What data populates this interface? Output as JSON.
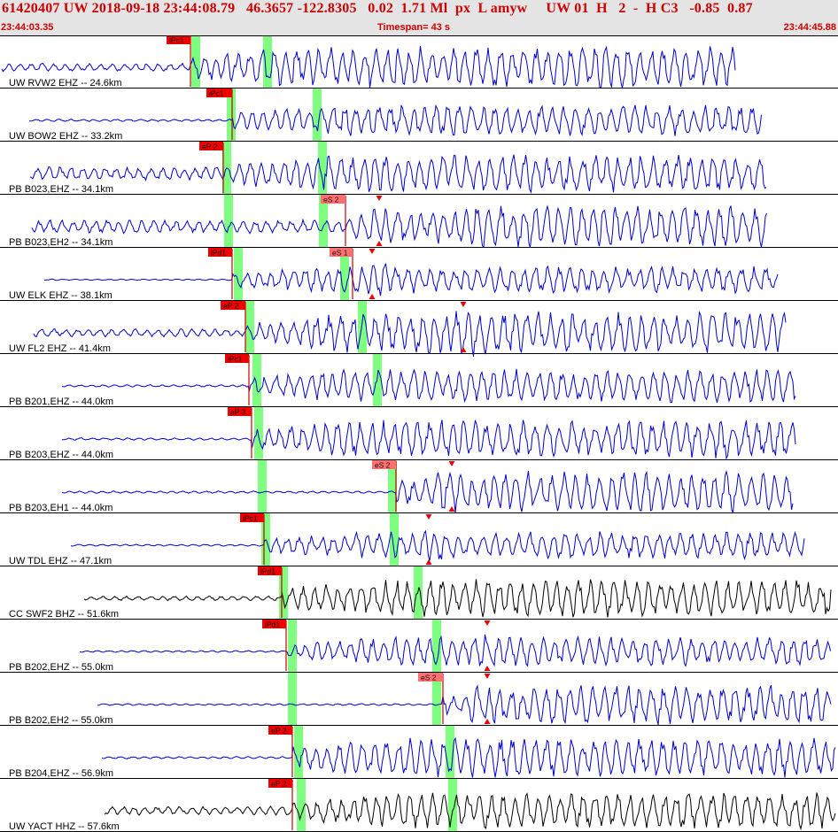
{
  "header": {
    "title_line": "61420407 UW 2018-09-18 23:44:08.79   46.3657 -122.8305   0.02  1.71 Ml  px  L amyw     UW 01  H   2  -  H C3   -0.85  0.87",
    "start_time": "23:44:03.35",
    "timespan": "Timespan=  43 s",
    "end_time": "23:44:45.88"
  },
  "colors": {
    "accent": "#cc0000",
    "trace_blue": "#0000cc",
    "trace_black": "#000000",
    "pick_green": "#7fff7f",
    "pick_red": "#ee0000",
    "header_bg": "#e4e4e4"
  },
  "channels": [
    {
      "label": "UW RVW2 EHZ -- 24.6km",
      "trace_color": "blue",
      "picks": [
        {
          "label": "iPc1",
          "type": "P"
        }
      ],
      "green_markers": 2
    },
    {
      "label": "UW BOW2 EHZ -- 33.2km",
      "trace_color": "blue",
      "picks": [
        {
          "label": "iPc1",
          "type": "P"
        }
      ],
      "green_markers": 2
    },
    {
      "label": "PB B023,EHZ -- 34.1km",
      "trace_color": "blue",
      "picks": [
        {
          "label": "eP 2",
          "type": "P"
        }
      ],
      "green_markers": 2
    },
    {
      "label": "PB B023,EH2 -- 34.1km",
      "trace_color": "blue",
      "picks": [
        {
          "label": "eS 2",
          "type": "S"
        }
      ],
      "green_markers": 2
    },
    {
      "label": "UW ELK EHZ -- 38.1km",
      "trace_color": "blue",
      "picks": [
        {
          "label": "iPd1",
          "type": "P"
        },
        {
          "label": "eS 1",
          "type": "S"
        }
      ],
      "green_markers": 2
    },
    {
      "label": "UW FL2 EHZ -- 41.4km",
      "trace_color": "blue",
      "picks": [
        {
          "label": "eP 2",
          "type": "P"
        }
      ],
      "green_markers": 2
    },
    {
      "label": "PB B201,EHZ -- 44.0km",
      "trace_color": "blue",
      "picks": [
        {
          "label": "iPc1",
          "type": "P"
        }
      ],
      "green_markers": 2
    },
    {
      "label": "PB B203,EHZ -- 44.0km",
      "trace_color": "blue",
      "picks": [
        {
          "label": "eP 3",
          "type": "P"
        }
      ],
      "green_markers": 1
    },
    {
      "label": "PB B203,EH1 -- 44.0km",
      "trace_color": "blue",
      "picks": [
        {
          "label": "eS 2",
          "type": "S"
        }
      ],
      "green_markers": 2
    },
    {
      "label": "UW TDL EHZ -- 47.1km",
      "trace_color": "blue",
      "picks": [
        {
          "label": "iPc1",
          "type": "P"
        }
      ],
      "green_markers": 2
    },
    {
      "label": "CC SWF2 BHZ -- 51.6km",
      "trace_color": "black",
      "picks": [
        {
          "label": "iPd1",
          "type": "P"
        }
      ],
      "green_markers": 2
    },
    {
      "label": "PB B202,EHZ -- 55.0km",
      "trace_color": "blue",
      "picks": [
        {
          "label": "iPd1",
          "type": "P"
        }
      ],
      "green_markers": 2
    },
    {
      "label": "PB B202,EH2 -- 55.0km",
      "trace_color": "blue",
      "picks": [
        {
          "label": "eS 2",
          "type": "S"
        }
      ],
      "green_markers": 2
    },
    {
      "label": "PB B204,EHZ -- 56.9km",
      "trace_color": "blue",
      "picks": [
        {
          "label": "eP 2",
          "type": "P"
        }
      ],
      "green_markers": 2
    },
    {
      "label": "UW YACT HHZ -- 57.6km",
      "trace_color": "black",
      "picks": [
        {
          "label": "eP 2",
          "type": "P"
        }
      ],
      "green_markers": 2
    }
  ]
}
